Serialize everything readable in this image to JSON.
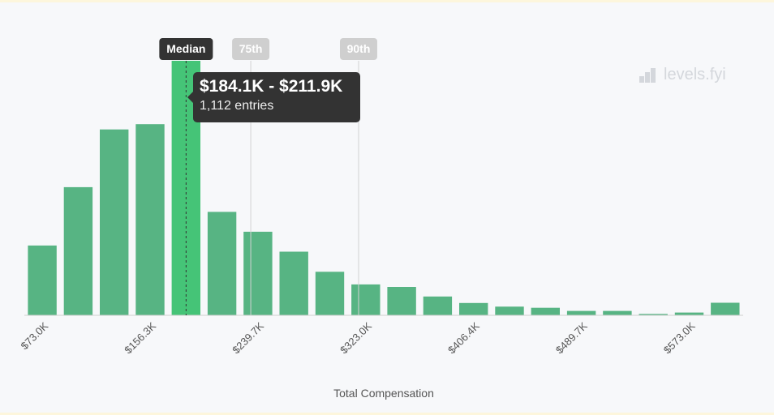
{
  "app": {
    "brand": "levels.fyi",
    "brand_icon": "levels-logo-icon"
  },
  "tooltip": {
    "range": "$184.1K - $211.9K",
    "count": "1,112 entries"
  },
  "chart_data": {
    "type": "bar",
    "title": "",
    "xlabel": "Total Compensation",
    "ylabel": "",
    "grid": false,
    "x_tick_labels": [
      "$73.0K",
      "$156.3K",
      "$239.7K",
      "$323.0K",
      "$406.4K",
      "$489.7K",
      "$573.0K"
    ],
    "bins": [
      {
        "range": "$73.0K - $100.8K",
        "count": 305
      },
      {
        "range": "$100.8K - $128.6K",
        "count": 560
      },
      {
        "range": "$128.6K - $156.3K",
        "count": 812
      },
      {
        "range": "$156.3K - $184.1K",
        "count": 835
      },
      {
        "range": "$184.1K - $211.9K",
        "count": 1112
      },
      {
        "range": "$211.9K - $239.7K",
        "count": 452
      },
      {
        "range": "$239.7K - $267.5K",
        "count": 365
      },
      {
        "range": "$267.5K - $295.2K",
        "count": 278
      },
      {
        "range": "$295.2K - $323.0K",
        "count": 190
      },
      {
        "range": "$323.0K - $350.8K",
        "count": 135
      },
      {
        "range": "$350.8K - $378.6K",
        "count": 124
      },
      {
        "range": "$378.6K - $406.4K",
        "count": 82
      },
      {
        "range": "$406.4K - $434.1K",
        "count": 54
      },
      {
        "range": "$434.1K - $461.9K",
        "count": 38
      },
      {
        "range": "$461.9K - $489.7K",
        "count": 33
      },
      {
        "range": "$489.7K - $517.5K",
        "count": 19
      },
      {
        "range": "$517.5K - $545.3K",
        "count": 19
      },
      {
        "range": "$545.3K - $573.0K",
        "count": 6
      },
      {
        "range": "$573.0K - $600.8K",
        "count": 12
      },
      {
        "range": "$600.8K+",
        "count": 55
      }
    ],
    "highlight_index": 4,
    "markers": [
      {
        "label": "Median",
        "value_bin": 4.5,
        "style": "dark"
      },
      {
        "label": "75th",
        "value_bin": 6.3,
        "style": "light"
      },
      {
        "label": "90th",
        "value_bin": 9.3,
        "style": "light"
      }
    ],
    "colors": {
      "bar": "#57b483",
      "bar_highlight": "#45c477",
      "marker_dark": "#333333",
      "marker_light": "#cfcfcf"
    }
  }
}
